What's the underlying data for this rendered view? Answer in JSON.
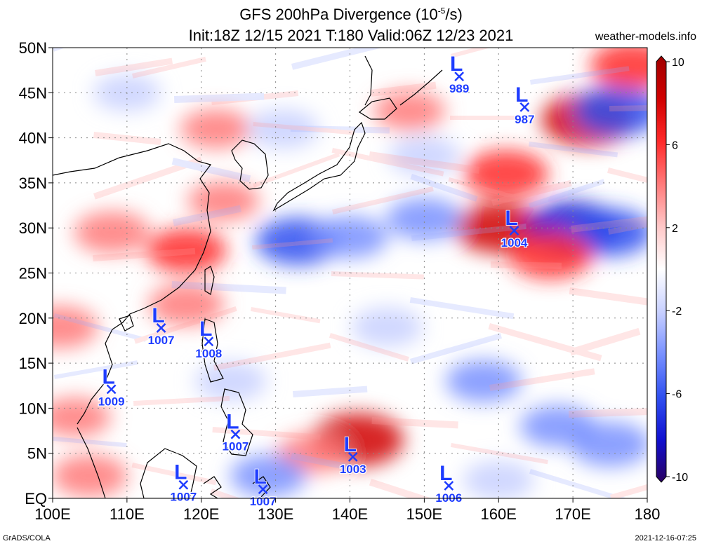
{
  "header": {
    "title_prefix": "GFS 200hPa Divergence (10",
    "title_exp": "-5",
    "title_suffix": "/s)",
    "subtitle": "Init:18Z 12/15 2021 T:180 Valid:06Z 12/23 2021",
    "site": "weather-models.info"
  },
  "footer": {
    "credit": "GrADS/COLA",
    "timestamp": "2021-12-16-07:25"
  },
  "colors": {
    "positive": "#e8191c",
    "negative": "#2a3fe0",
    "neutral": "#ffffff",
    "label": "#1e3cff",
    "coast": "#000000"
  },
  "chart_data": {
    "type": "heatmap",
    "title": "GFS 200hPa Divergence (10-5/s)",
    "subtitle": "Init:18Z 12/15 2021 T:180 Valid:06Z 12/23 2021",
    "xlim": [
      100,
      180
    ],
    "ylim": [
      0,
      50
    ],
    "x_ticks": [
      100,
      110,
      120,
      130,
      140,
      150,
      160,
      170,
      180
    ],
    "x_tick_labels": [
      "100E",
      "110E",
      "120E",
      "130E",
      "140E",
      "150E",
      "160E",
      "170E",
      "180"
    ],
    "y_ticks": [
      0,
      5,
      10,
      15,
      20,
      25,
      30,
      35,
      40,
      45,
      50
    ],
    "y_tick_labels": [
      "EQ",
      "5N",
      "10N",
      "15N",
      "20N",
      "25N",
      "30N",
      "35N",
      "40N",
      "45N",
      "50N"
    ],
    "grid": true,
    "colorbar": {
      "range": [
        -10,
        10
      ],
      "ticks": [
        10,
        6,
        2,
        -2,
        -6,
        -10
      ],
      "tick_labels": [
        "10",
        "6",
        "2",
        "-2",
        "-6",
        "-10"
      ],
      "colors": [
        "#2a0060",
        "#1010d0",
        "#3050f0",
        "#7890ff",
        "#c8d0ff",
        "#ffffff",
        "#ffc8c8",
        "#ff7a7a",
        "#ff2a2a",
        "#d00000",
        "#a00000"
      ]
    },
    "lows": [
      {
        "lon": 154.7,
        "lat": 46.8,
        "pressure": "989"
      },
      {
        "lon": 163.5,
        "lat": 43.4,
        "pressure": "987"
      },
      {
        "lon": 162.1,
        "lat": 29.7,
        "pressure": "1004"
      },
      {
        "lon": 114.6,
        "lat": 18.9,
        "pressure": "1007"
      },
      {
        "lon": 121.0,
        "lat": 17.4,
        "pressure": "1008"
      },
      {
        "lon": 107.9,
        "lat": 12.1,
        "pressure": "1009"
      },
      {
        "lon": 124.6,
        "lat": 7.1,
        "pressure": "1007"
      },
      {
        "lon": 140.4,
        "lat": 4.6,
        "pressure": "1003"
      },
      {
        "lon": 117.6,
        "lat": 1.5,
        "pressure": "1007"
      },
      {
        "lon": 128.3,
        "lat": 1.0,
        "pressure": "1007"
      },
      {
        "lon": 153.3,
        "lat": 1.4,
        "pressure": "1006"
      }
    ],
    "features": [
      {
        "lon": 172.0,
        "lat": 42.0,
        "value": 8
      },
      {
        "lon": 176.0,
        "lat": 43.0,
        "value": -7
      },
      {
        "lon": 161.0,
        "lat": 36.0,
        "value": 6
      },
      {
        "lon": 160.0,
        "lat": 30.0,
        "value": 7
      },
      {
        "lon": 170.0,
        "lat": 30.0,
        "value": -8
      },
      {
        "lon": 175.0,
        "lat": 29.5,
        "value": -6
      },
      {
        "lon": 167.0,
        "lat": 27.0,
        "value": 6
      },
      {
        "lon": 133.0,
        "lat": 28.5,
        "value": -6
      },
      {
        "lon": 140.0,
        "lat": 29.0,
        "value": -4
      },
      {
        "lon": 150.0,
        "lat": 31.0,
        "value": -4
      },
      {
        "lon": 118.0,
        "lat": 27.5,
        "value": 5
      },
      {
        "lon": 108.0,
        "lat": 29.5,
        "value": 4
      },
      {
        "lon": 123.0,
        "lat": 33.0,
        "value": 3
      },
      {
        "lon": 118.0,
        "lat": 21.5,
        "value": 4
      },
      {
        "lon": 101.0,
        "lat": 19.0,
        "value": 4
      },
      {
        "lon": 141.0,
        "lat": 6.5,
        "value": 8
      },
      {
        "lon": 135.0,
        "lat": 5.0,
        "value": 3
      },
      {
        "lon": 103.0,
        "lat": 9.0,
        "value": 3
      },
      {
        "lon": 105.0,
        "lat": 2.5,
        "value": 4
      },
      {
        "lon": 129.0,
        "lat": 2.5,
        "value": -4
      },
      {
        "lon": 124.0,
        "lat": 13.0,
        "value": -3
      },
      {
        "lon": 145.0,
        "lat": 19.0,
        "value": -3
      },
      {
        "lon": 158.0,
        "lat": 13.0,
        "value": -4
      },
      {
        "lon": 168.0,
        "lat": 8.0,
        "value": -4
      },
      {
        "lon": 175.0,
        "lat": 6.0,
        "value": -5
      },
      {
        "lon": 160.0,
        "lat": 2.0,
        "value": -3
      },
      {
        "lon": 122.0,
        "lat": 41.0,
        "value": 3
      },
      {
        "lon": 131.0,
        "lat": 41.0,
        "value": -3
      },
      {
        "lon": 148.0,
        "lat": 43.0,
        "value": 3
      },
      {
        "lon": 150.0,
        "lat": 38.0,
        "value": -3
      },
      {
        "lon": 110.0,
        "lat": 45.0,
        "value": -2
      },
      {
        "lon": 178.0,
        "lat": 48.0,
        "value": 6
      }
    ]
  }
}
